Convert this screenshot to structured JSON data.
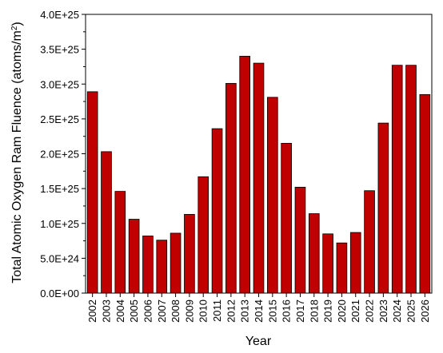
{
  "chart_data": {
    "type": "bar",
    "title": "",
    "xlabel": "Year",
    "ylabel_main": "Total Atomic Oxygen Ram Fluence (atoms/m",
    "ylabel_sup": "2",
    "ylabel_close": ")",
    "ylim": [
      0,
      4e+25
    ],
    "yticks": [
      0,
      5e+24,
      1e+25,
      1.5e+25,
      2e+25,
      2.5e+25,
      3e+25,
      3.5e+25,
      4e+25
    ],
    "ytick_labels": [
      "0.0E+00",
      "5.0E+24",
      "1.0E+25",
      "1.5E+25",
      "2.0E+25",
      "2.5E+25",
      "3.0E+25",
      "3.5E+25",
      "4.0E+25"
    ],
    "categories": [
      "2002",
      "2003",
      "2004",
      "2005",
      "2006",
      "2007",
      "2008",
      "2009",
      "2010",
      "2011",
      "2012",
      "2013",
      "2014",
      "2015",
      "2016",
      "2017",
      "2018",
      "2019",
      "2020",
      "2021",
      "2022",
      "2023",
      "2024",
      "2025",
      "2026"
    ],
    "values": [
      2.89e+25,
      2.03e+25,
      1.46e+25,
      1.06e+25,
      8.2e+24,
      7.6e+24,
      8.6e+24,
      1.13e+25,
      1.67e+25,
      2.36e+25,
      3.01e+25,
      3.4e+25,
      3.3e+25,
      2.81e+25,
      2.15e+25,
      1.52e+25,
      1.14e+25,
      8.5e+24,
      7.2e+24,
      8.7e+24,
      1.47e+25,
      2.44e+25,
      3.27e+25,
      3.27e+25,
      2.85e+25
    ],
    "bar_color": "#c00000",
    "bar_stroke": "#000000",
    "grid": false,
    "legend": "none"
  }
}
